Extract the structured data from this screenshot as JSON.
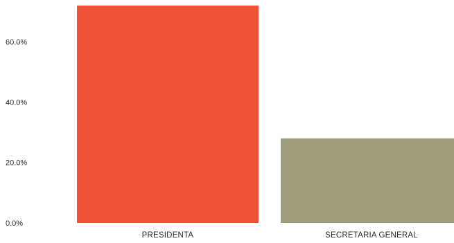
{
  "chart_data": {
    "type": "bar",
    "categories": [
      "PRESIDENTA",
      "SECRETARIA GENERAL"
    ],
    "values": [
      72.0,
      28.0
    ],
    "colors": [
      "#f05237",
      "#9e9c7a"
    ],
    "yticks": [
      "0.0%",
      "20.0%",
      "40.0%",
      "60.0%"
    ],
    "ytick_values": [
      0,
      20,
      40,
      60
    ],
    "ylim": [
      0,
      72
    ],
    "grid": false,
    "legend": "none"
  }
}
